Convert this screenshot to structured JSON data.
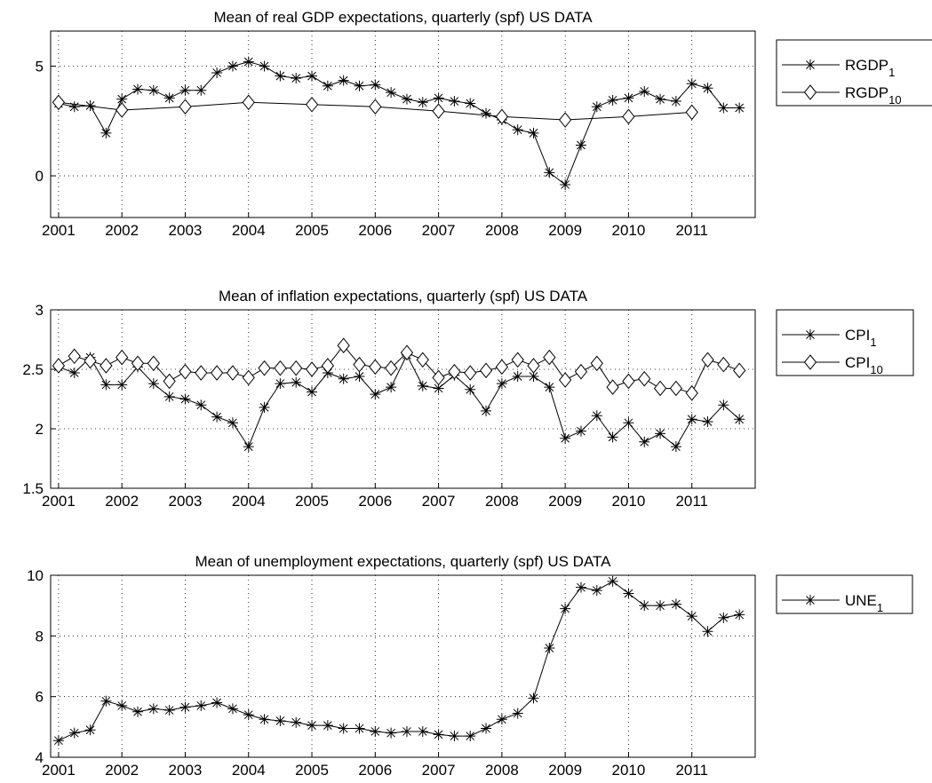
{
  "chart_data": [
    {
      "type": "line",
      "title": "Mean of real GDP expectations, quarterly (spf) US DATA",
      "x": [
        2001,
        2001.25,
        2001.5,
        2001.75,
        2002,
        2002.25,
        2002.5,
        2002.75,
        2003,
        2003.25,
        2003.5,
        2003.75,
        2004,
        2004.25,
        2004.5,
        2004.75,
        2005,
        2005.25,
        2005.5,
        2005.75,
        2006,
        2006.25,
        2006.5,
        2006.75,
        2007,
        2007.25,
        2007.5,
        2007.75,
        2008,
        2008.25,
        2008.5,
        2008.75,
        2009,
        2009.25,
        2009.5,
        2009.75,
        2010,
        2010.25,
        2010.5,
        2010.75,
        2011,
        2011.25,
        2011.5,
        2011.75
      ],
      "xlim": [
        2000.875,
        2012
      ],
      "xticks": [
        2001,
        2002,
        2003,
        2004,
        2005,
        2006,
        2007,
        2008,
        2009,
        2010,
        2011
      ],
      "ylim": [
        -1.9,
        6.6
      ],
      "yticks": [
        0,
        5
      ],
      "grid": true,
      "series": [
        {
          "name": "RGDP",
          "sub": "1",
          "color": "#000000",
          "marker": "asterisk",
          "values": [
            3.3,
            3.15,
            3.2,
            1.95,
            3.5,
            3.95,
            3.9,
            3.55,
            3.9,
            3.9,
            4.7,
            5.0,
            5.2,
            5.0,
            4.55,
            4.45,
            4.55,
            4.1,
            4.35,
            4.1,
            4.15,
            3.8,
            3.5,
            3.35,
            3.55,
            3.4,
            3.3,
            2.85,
            2.55,
            2.1,
            1.95,
            0.15,
            -0.4,
            1.4,
            3.15,
            3.45,
            3.55,
            3.85,
            3.5,
            3.4,
            4.2,
            4.0,
            3.1,
            3.1
          ]
        },
        {
          "name": "RGDP",
          "sub": "10",
          "color": "#000000",
          "marker": "diamond",
          "x": [
            2001,
            2002,
            2003,
            2004,
            2005,
            2006,
            2007,
            2008,
            2009,
            2010,
            2011
          ],
          "values": [
            3.35,
            3.0,
            3.15,
            3.35,
            3.25,
            3.15,
            2.95,
            2.7,
            2.55,
            2.7,
            2.9
          ]
        }
      ]
    },
    {
      "type": "line",
      "title": "Mean of inflation expectations, quarterly (spf) US DATA",
      "x": [
        2001,
        2001.25,
        2001.5,
        2001.75,
        2002,
        2002.25,
        2002.5,
        2002.75,
        2003,
        2003.25,
        2003.5,
        2003.75,
        2004,
        2004.25,
        2004.5,
        2004.75,
        2005,
        2005.25,
        2005.5,
        2005.75,
        2006,
        2006.25,
        2006.5,
        2006.75,
        2007,
        2007.25,
        2007.5,
        2007.75,
        2008,
        2008.25,
        2008.5,
        2008.75,
        2009,
        2009.25,
        2009.5,
        2009.75,
        2010,
        2010.25,
        2010.5,
        2010.75,
        2011,
        2011.25,
        2011.5,
        2011.75
      ],
      "xlim": [
        2000.875,
        2012
      ],
      "xticks": [
        2001,
        2002,
        2003,
        2004,
        2005,
        2006,
        2007,
        2008,
        2009,
        2010,
        2011
      ],
      "ylim": [
        1.5,
        3
      ],
      "yticks": [
        1.5,
        2,
        2.5,
        3
      ],
      "grid": true,
      "series": [
        {
          "name": "CPI",
          "sub": "1",
          "color": "#000000",
          "marker": "asterisk",
          "values": [
            2.52,
            2.47,
            2.6,
            2.37,
            2.37,
            2.52,
            2.38,
            2.27,
            2.25,
            2.2,
            2.1,
            2.05,
            1.85,
            2.18,
            2.38,
            2.39,
            2.31,
            2.47,
            2.42,
            2.44,
            2.29,
            2.35,
            2.62,
            2.36,
            2.34,
            2.45,
            2.33,
            2.15,
            2.38,
            2.44,
            2.44,
            2.35,
            1.92,
            1.98,
            2.11,
            1.93,
            2.05,
            1.89,
            1.96,
            1.85,
            2.08,
            2.06,
            2.2,
            2.08
          ]
        },
        {
          "name": "CPI",
          "sub": "10",
          "color": "#000000",
          "marker": "diamond",
          "values": [
            2.53,
            2.61,
            2.57,
            2.53,
            2.6,
            2.55,
            2.55,
            2.4,
            2.48,
            2.47,
            2.47,
            2.47,
            2.43,
            2.51,
            2.51,
            2.51,
            2.5,
            2.53,
            2.7,
            2.54,
            2.52,
            2.51,
            2.64,
            2.58,
            2.43,
            2.48,
            2.47,
            2.49,
            2.52,
            2.58,
            2.53,
            2.6,
            2.41,
            2.48,
            2.55,
            2.35,
            2.4,
            2.42,
            2.34,
            2.34,
            2.3,
            2.58,
            2.54,
            2.49
          ]
        }
      ]
    },
    {
      "type": "line",
      "title": "Mean of unemployment expectations, quarterly (spf) US DATA",
      "x": [
        2001,
        2001.25,
        2001.5,
        2001.75,
        2002,
        2002.25,
        2002.5,
        2002.75,
        2003,
        2003.25,
        2003.5,
        2003.75,
        2004,
        2004.25,
        2004.5,
        2004.75,
        2005,
        2005.25,
        2005.5,
        2005.75,
        2006,
        2006.25,
        2006.5,
        2006.75,
        2007,
        2007.25,
        2007.5,
        2007.75,
        2008,
        2008.25,
        2008.5,
        2008.75,
        2009,
        2009.25,
        2009.5,
        2009.75,
        2010,
        2010.25,
        2010.5,
        2010.75,
        2011,
        2011.25,
        2011.5,
        2011.75
      ],
      "xlim": [
        2000.875,
        2012
      ],
      "xticks": [
        2001,
        2002,
        2003,
        2004,
        2005,
        2006,
        2007,
        2008,
        2009,
        2010,
        2011
      ],
      "ylim": [
        4,
        10
      ],
      "yticks": [
        4,
        6,
        8,
        10
      ],
      "grid": true,
      "series": [
        {
          "name": "UNE",
          "sub": "1",
          "color": "#000000",
          "marker": "asterisk",
          "values": [
            4.55,
            4.8,
            4.9,
            5.85,
            5.7,
            5.5,
            5.6,
            5.55,
            5.65,
            5.7,
            5.8,
            5.6,
            5.4,
            5.25,
            5.2,
            5.15,
            5.05,
            5.05,
            4.95,
            4.95,
            4.85,
            4.8,
            4.85,
            4.85,
            4.75,
            4.7,
            4.7,
            4.95,
            5.25,
            5.45,
            5.95,
            7.6,
            8.9,
            9.6,
            9.5,
            9.8,
            9.4,
            9.0,
            9.0,
            9.05,
            8.65,
            8.15,
            8.6,
            8.7
          ]
        }
      ]
    }
  ]
}
